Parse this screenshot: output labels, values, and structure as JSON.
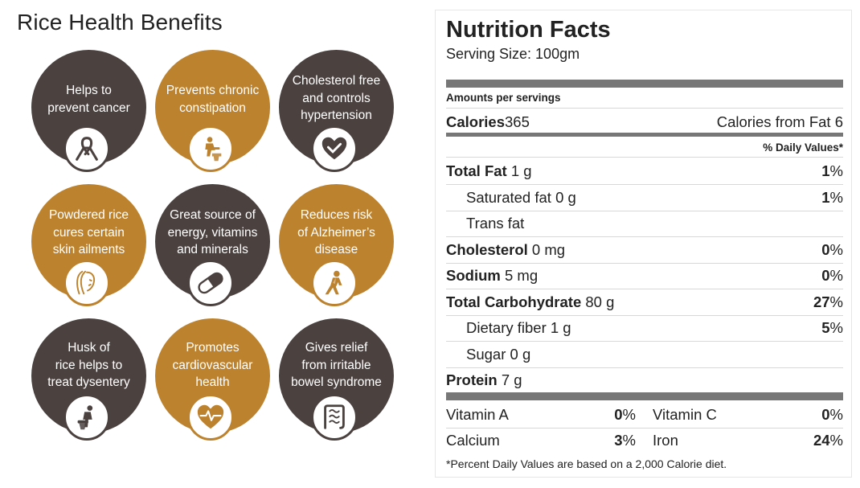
{
  "left": {
    "title": "Rice Health Benefits",
    "colors": {
      "dark": "#4b4240",
      "gold": "#bd822e"
    },
    "benefits": [
      {
        "text": "Helps to\nprevent cancer",
        "color": "dark",
        "icon": "ribbon-icon"
      },
      {
        "text": "Prevents chronic\nconstipation",
        "color": "gold",
        "icon": "toilet-person-icon"
      },
      {
        "text": "Cholesterol free\nand controls\nhypertension",
        "color": "dark",
        "icon": "heart-check-icon"
      },
      {
        "text": "Powdered rice\ncures certain\nskin ailments",
        "color": "gold",
        "icon": "woman-face-icon"
      },
      {
        "text": "Great source of\nenergy, vitamins\nand minerals",
        "color": "dark",
        "icon": "capsule-icon"
      },
      {
        "text": "Reduces risk\nof Alzheimer’s\ndisease",
        "color": "gold",
        "icon": "thinking-person-icon"
      },
      {
        "text": "Husk of\nrice helps to\ntreat dysentery",
        "color": "dark",
        "icon": "sitting-person-icon"
      },
      {
        "text": "Promotes\ncardiovascular\nhealth",
        "color": "gold",
        "icon": "heartbeat-icon"
      },
      {
        "text": "Gives relief\nfrom irritable\nbowel syndrome",
        "color": "dark",
        "icon": "intestine-icon"
      }
    ]
  },
  "nutrition": {
    "title": "Nutrition Facts",
    "serving": "Serving Size: 100gm",
    "amounts_label": "Amounts per servings",
    "calories_label": "Calories",
    "calories_value": "365",
    "calories_fat": "Calories from Fat 6",
    "daily_values_label": "% Daily Values*",
    "rows": [
      {
        "name": "Total Fat",
        "amount": " 1 g",
        "bold": true,
        "indent": false,
        "dv_num": "1",
        "dv_sign": "%"
      },
      {
        "name": "Saturated fat",
        "amount": " 0 g",
        "bold": false,
        "indent": true,
        "dv_num": "1",
        "dv_sign": "%"
      },
      {
        "name": "Trans fat",
        "amount": "",
        "bold": false,
        "indent": true,
        "dv_num": "",
        "dv_sign": ""
      },
      {
        "name": "Cholesterol",
        "amount": " 0 mg",
        "bold": true,
        "indent": false,
        "dv_num": "0",
        "dv_sign": "%"
      },
      {
        "name": "Sodium",
        "amount": " 5 mg",
        "bold": true,
        "indent": false,
        "dv_num": "0",
        "dv_sign": "%"
      },
      {
        "name": "Total Carbohydrate",
        "amount": " 80 g",
        "bold": true,
        "indent": false,
        "dv_num": "27",
        "dv_sign": "%"
      },
      {
        "name": "Dietary fiber",
        "amount": " 1 g",
        "bold": false,
        "indent": true,
        "dv_num": "5",
        "dv_sign": "%"
      },
      {
        "name": "Sugar",
        "amount": " 0 g",
        "bold": false,
        "indent": true,
        "dv_num": "",
        "dv_sign": ""
      },
      {
        "name": "Protein",
        "amount": " 7 g",
        "bold": true,
        "indent": false,
        "dv_num": "",
        "dv_sign": ""
      }
    ],
    "vitamins": [
      {
        "name": "Vitamin A",
        "num": "0",
        "sign": "%",
        "name2": "Vitamin C",
        "num2": "0",
        "sign2": "%"
      },
      {
        "name": "Calcium",
        "num": "3",
        "sign": "%",
        "name2": "Iron",
        "num2": "24",
        "sign2": "%"
      }
    ],
    "footnote": "*Percent Daily Values are based on a 2,000 Calorie diet."
  }
}
